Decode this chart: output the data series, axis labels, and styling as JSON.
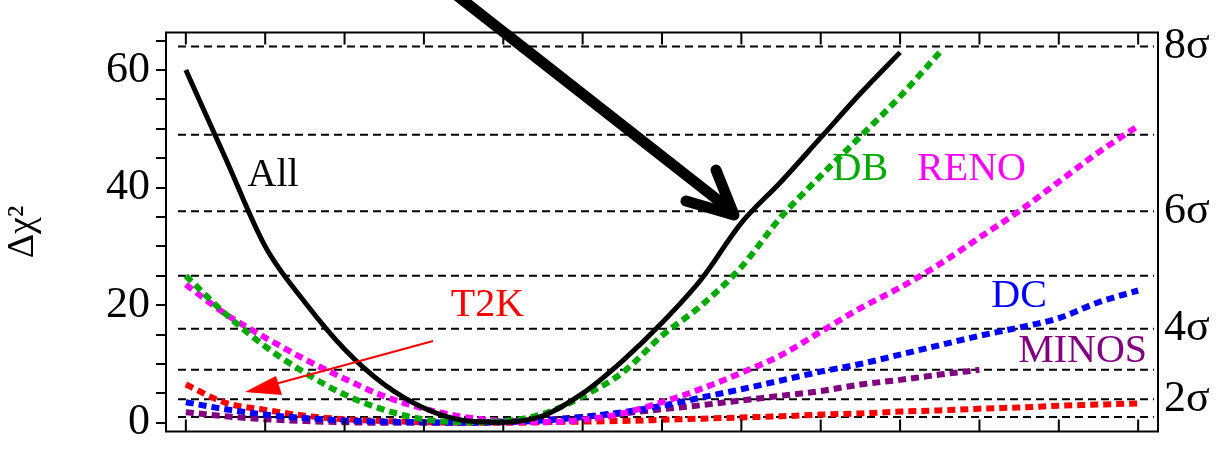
{
  "chart_data": {
    "type": "line",
    "ylabel": "Δχ²",
    "categories": [
      null,
      null,
      null,
      null,
      null,
      null,
      null,
      null,
      null,
      null,
      null,
      null,
      null,
      null,
      null,
      null,
      null,
      null,
      null,
      null,
      null,
      null,
      null,
      null,
      null
    ],
    "series": [
      {
        "name": "All",
        "color": "#000000",
        "line_style": "solid",
        "values": [
          60,
          45,
          30,
          20.5,
          12.5,
          6.5,
          2.5,
          0.4,
          0.1,
          1.2,
          5,
          10.5,
          17,
          24.5,
          34,
          41,
          48.5,
          56,
          63,
          null,
          null,
          null,
          null,
          null,
          null
        ]
      },
      {
        "name": "DB",
        "color": "#00aa00",
        "line_style": "dashed",
        "values": [
          25,
          18.5,
          13,
          8.5,
          4.8,
          2.2,
          0.6,
          0.1,
          0.3,
          1.5,
          4.5,
          8.5,
          14.8,
          20,
          26.5,
          35,
          42,
          48.7,
          55.5,
          63,
          null,
          null,
          null,
          null,
          null
        ]
      },
      {
        "name": "RENO",
        "color": "#ff00ff",
        "line_style": "dashed",
        "values": [
          23.5,
          18.5,
          14.5,
          10.8,
          7.5,
          4.5,
          2.4,
          1,
          0.3,
          0.1,
          0.5,
          1.6,
          3.5,
          5.8,
          8.5,
          11.5,
          15.5,
          19.5,
          23,
          27,
          31.5,
          36,
          41,
          46,
          50.5
        ]
      },
      {
        "name": "DC",
        "color": "#0000ff",
        "line_style": "dashed",
        "values": [
          3.5,
          2.3,
          1.4,
          0.8,
          0.4,
          0.2,
          0.1,
          0,
          0.1,
          0.4,
          1,
          1.8,
          2.9,
          4.3,
          5.7,
          7.2,
          8.7,
          10,
          11.6,
          13.2,
          14.8,
          16.2,
          17.8,
          20.5,
          22.5
        ]
      },
      {
        "name": "MINOS",
        "color": "#800080",
        "line_style": "dashed",
        "values": [
          1.8,
          1.1,
          0.6,
          0.3,
          0.1,
          0,
          0,
          0,
          0.2,
          0.5,
          1,
          1.6,
          2.3,
          3,
          3.8,
          4.6,
          5.4,
          6.5,
          7.3,
          8.2,
          9,
          null,
          null,
          null,
          null
        ]
      },
      {
        "name": "T2K",
        "color": "#ff0000",
        "line_style": "dashed",
        "values": [
          6.5,
          3.4,
          2.2,
          1.2,
          0.6,
          0.3,
          0.1,
          0,
          0,
          0.1,
          0.2,
          0.3,
          0.5,
          0.7,
          0.9,
          1.1,
          1.4,
          1.6,
          1.9,
          2.1,
          2.4,
          2.6,
          2.9,
          3.1,
          3.3
        ]
      }
    ],
    "ylim": [
      -1.5,
      66.4
    ],
    "yticks": [
      0,
      {
        "value": 5,
        "label": null
      },
      {
        "value": 10,
        "label": null
      },
      {
        "value": 15,
        "label": null
      },
      20,
      {
        "value": 25,
        "label": null
      },
      {
        "value": 30,
        "label": null
      },
      {
        "value": 35,
        "label": null
      },
      40,
      {
        "value": 45,
        "label": null
      },
      {
        "value": 50,
        "label": null
      },
      {
        "value": 55,
        "label": null
      },
      60,
      {
        "value": 65,
        "label": null
      }
    ],
    "ref_lines": [
      {
        "axis": "y",
        "value": 1,
        "color": "#000000",
        "line_style": "dashed"
      },
      {
        "axis": "y",
        "value": 4,
        "label": "2σ",
        "color": "#000000",
        "line_style": "dashed"
      },
      {
        "axis": "y",
        "value": 9,
        "color": "#000000",
        "line_style": "dashed"
      },
      {
        "axis": "y",
        "value": 16,
        "label": "4σ",
        "color": "#000000",
        "line_style": "dashed"
      },
      {
        "axis": "y",
        "value": 25,
        "color": "#000000",
        "line_style": "dashed"
      },
      {
        "axis": "y",
        "value": 36,
        "label": "6σ",
        "color": "#000000",
        "line_style": "dashed"
      },
      {
        "axis": "y",
        "value": 49,
        "color": "#000000",
        "line_style": "dashed"
      },
      {
        "axis": "y",
        "value": 64,
        "label": "8σ",
        "color": "#000000",
        "line_style": "dashed"
      }
    ],
    "grid": false,
    "legend": false,
    "marker": "none",
    "tick_labels": "y"
  }
}
